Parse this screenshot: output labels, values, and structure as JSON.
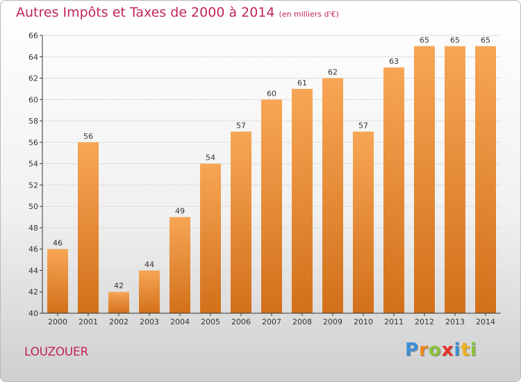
{
  "chart_data": {
    "type": "bar",
    "title": "Autres Impôts et Taxes de 2000 à 2014",
    "subtitle": "(en milliers d'€)",
    "categories": [
      "2000",
      "2001",
      "2002",
      "2003",
      "2004",
      "2005",
      "2006",
      "2007",
      "2008",
      "2009",
      "2010",
      "2011",
      "2012",
      "2013",
      "2014"
    ],
    "values": [
      46,
      56,
      42,
      44,
      49,
      54,
      57,
      60,
      61,
      62,
      57,
      63,
      65,
      65,
      65
    ],
    "ylim": [
      40,
      66
    ],
    "yticks": [
      40,
      42,
      44,
      46,
      48,
      50,
      52,
      54,
      56,
      58,
      60,
      62,
      64,
      66
    ],
    "grid": true,
    "bar_color_top": "#f7a655",
    "bar_color_bottom": "#d2701a"
  },
  "commune": "LOUZOUER",
  "logo": {
    "letters": [
      "P",
      "r",
      "o",
      "x",
      "i",
      "t",
      "i"
    ],
    "colors": [
      "#3a8fd6",
      "#f08a1c",
      "#8cc43c",
      "#e5342a",
      "#3a8fd6",
      "#f0b21c",
      "#8cc43c"
    ]
  },
  "colors": {
    "title": "#c0245c",
    "axis": "#333333",
    "grid": "#dddddd"
  }
}
